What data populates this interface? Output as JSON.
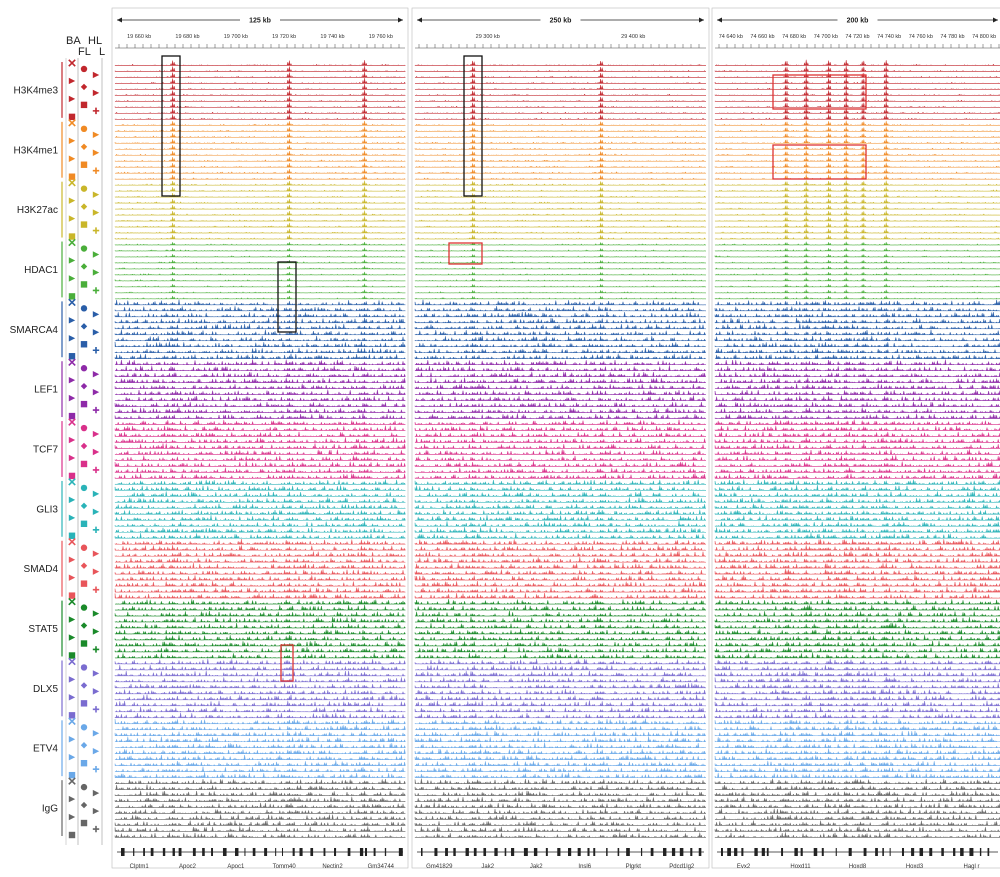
{
  "tissue_labels": {
    "top": [
      "BA",
      "HL"
    ],
    "bottom": [
      "FL",
      "L"
    ]
  },
  "marks": [
    {
      "name": "H3K4me3",
      "color": "#c1272d",
      "peaky": "high"
    },
    {
      "name": "H3K4me1",
      "color": "#f08a24",
      "peaky": "mid"
    },
    {
      "name": "H3K27ac",
      "color": "#c9b62a",
      "peaky": "mid"
    },
    {
      "name": "HDAC1",
      "color": "#4aae3a",
      "peaky": "low"
    },
    {
      "name": "SMARCA4",
      "color": "#2a5ea8",
      "peaky": "noise"
    },
    {
      "name": "LEF1",
      "color": "#8e2aa8",
      "peaky": "noise"
    },
    {
      "name": "TCF7",
      "color": "#d9308a",
      "peaky": "noise"
    },
    {
      "name": "GLI3",
      "color": "#2ab3b8",
      "peaky": "noise"
    },
    {
      "name": "SMAD4",
      "color": "#e8555a",
      "peaky": "noise"
    },
    {
      "name": "STAT5",
      "color": "#1a8a2a",
      "peaky": "noise"
    },
    {
      "name": "DLX5",
      "color": "#7a6cd0",
      "peaky": "noise"
    },
    {
      "name": "ETV4",
      "color": "#6aa8e8",
      "peaky": "noise"
    },
    {
      "name": "IgG",
      "color": "#666666",
      "peaky": "noise"
    }
  ],
  "panels": [
    {
      "span": "125 kb",
      "ticks": [
        "19 660 kb",
        "19 680 kb",
        "19 700 kb",
        "19 720 kb",
        "19 740 kb",
        "19 760 kb"
      ],
      "genes": [
        "Clptm1",
        "Apoc2",
        "Apoc1",
        "Tomm40",
        "Nectin2",
        "Gm34744"
      ],
      "peaks": [
        0.2,
        0.6,
        0.86
      ]
    },
    {
      "span": "250 kb",
      "ticks": [
        "29 300 kb",
        "29 400 kb"
      ],
      "genes": [
        "Gm41829",
        "Jak2",
        "Jak2",
        "Insl6",
        "Plgrkt",
        "Pdcd1lg2"
      ],
      "peaks": [
        0.2,
        0.64
      ]
    },
    {
      "span": "200 kb",
      "ticks": [
        "74 640 kb",
        "74 660 kb",
        "74 680 kb",
        "74 700 kb",
        "74 720 kb",
        "74 740 kb",
        "74 760 kb",
        "74 780 kb",
        "74 800 kb"
      ],
      "genes": [
        "Evx2",
        "Hoxd11",
        "Hoxd8",
        "Hoxd3",
        "Hagl r"
      ],
      "peaks": [
        0.25,
        0.32,
        0.4,
        0.46,
        0.52,
        0.6
      ]
    }
  ]
}
